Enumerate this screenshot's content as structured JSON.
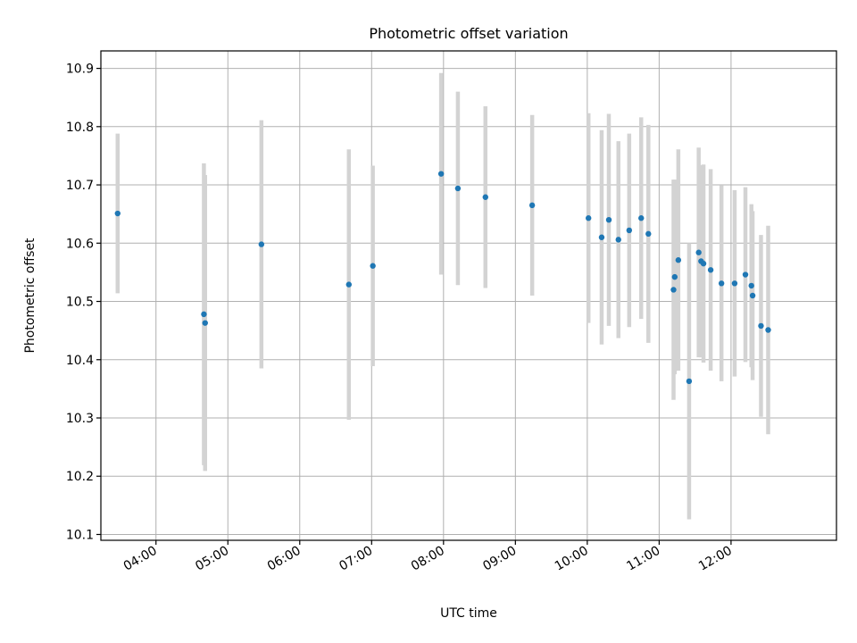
{
  "chart_data": {
    "type": "scatter",
    "title": "Photometric offset variation",
    "xlabel": "UTC time",
    "ylabel": "Photometric offset",
    "x_axis": "time",
    "xlim": [
      "03:14",
      "13:28"
    ],
    "ylim": [
      10.09,
      10.93
    ],
    "x_ticks": [
      "04:00",
      "05:00",
      "06:00",
      "07:00",
      "08:00",
      "09:00",
      "10:00",
      "11:00",
      "12:00"
    ],
    "y_ticks": [
      10.1,
      10.2,
      10.3,
      10.4,
      10.5,
      10.6,
      10.7,
      10.8,
      10.9
    ],
    "grid": true,
    "colors": {
      "points": "#1f77b4",
      "error_bars": "#d3d3d3"
    },
    "points": [
      {
        "x": "03:28",
        "y": 10.651,
        "err": 0.137
      },
      {
        "x": "04:40",
        "y": 10.478,
        "err": 0.259
      },
      {
        "x": "04:41",
        "y": 10.463,
        "err": 0.254
      },
      {
        "x": "05:28",
        "y": 10.598,
        "err": 0.213
      },
      {
        "x": "06:41",
        "y": 10.529,
        "err": 0.232
      },
      {
        "x": "07:01",
        "y": 10.561,
        "err": 0.172
      },
      {
        "x": "07:58",
        "y": 10.719,
        "err": 0.173
      },
      {
        "x": "08:12",
        "y": 10.694,
        "err": 0.166
      },
      {
        "x": "08:35",
        "y": 10.679,
        "err": 0.156
      },
      {
        "x": "09:14",
        "y": 10.665,
        "err": 0.155
      },
      {
        "x": "10:01",
        "y": 10.643,
        "err": 0.18
      },
      {
        "x": "10:12",
        "y": 10.61,
        "err": 0.184
      },
      {
        "x": "10:18",
        "y": 10.64,
        "err": 0.182
      },
      {
        "x": "10:26",
        "y": 10.606,
        "err": 0.169
      },
      {
        "x": "10:35",
        "y": 10.622,
        "err": 0.166
      },
      {
        "x": "10:45",
        "y": 10.643,
        "err": 0.173
      },
      {
        "x": "10:51",
        "y": 10.616,
        "err": 0.187
      },
      {
        "x": "11:12",
        "y": 10.52,
        "err": 0.189
      },
      {
        "x": "11:13",
        "y": 10.542,
        "err": 0.167
      },
      {
        "x": "11:16",
        "y": 10.571,
        "err": 0.19
      },
      {
        "x": "11:25",
        "y": 10.363,
        "err": 0.237
      },
      {
        "x": "11:33",
        "y": 10.584,
        "err": 0.18
      },
      {
        "x": "11:35",
        "y": 10.569,
        "err": 0.165
      },
      {
        "x": "11:37",
        "y": 10.565,
        "err": 0.17
      },
      {
        "x": "11:43",
        "y": 10.554,
        "err": 0.173
      },
      {
        "x": "11:52",
        "y": 10.531,
        "err": 0.168
      },
      {
        "x": "12:03",
        "y": 10.531,
        "err": 0.16
      },
      {
        "x": "12:12",
        "y": 10.546,
        "err": 0.15
      },
      {
        "x": "12:17",
        "y": 10.527,
        "err": 0.14
      },
      {
        "x": "12:18",
        "y": 10.51,
        "err": 0.145
      },
      {
        "x": "12:25",
        "y": 10.458,
        "err": 0.156
      },
      {
        "x": "12:31",
        "y": 10.451,
        "err": 0.179
      }
    ]
  }
}
